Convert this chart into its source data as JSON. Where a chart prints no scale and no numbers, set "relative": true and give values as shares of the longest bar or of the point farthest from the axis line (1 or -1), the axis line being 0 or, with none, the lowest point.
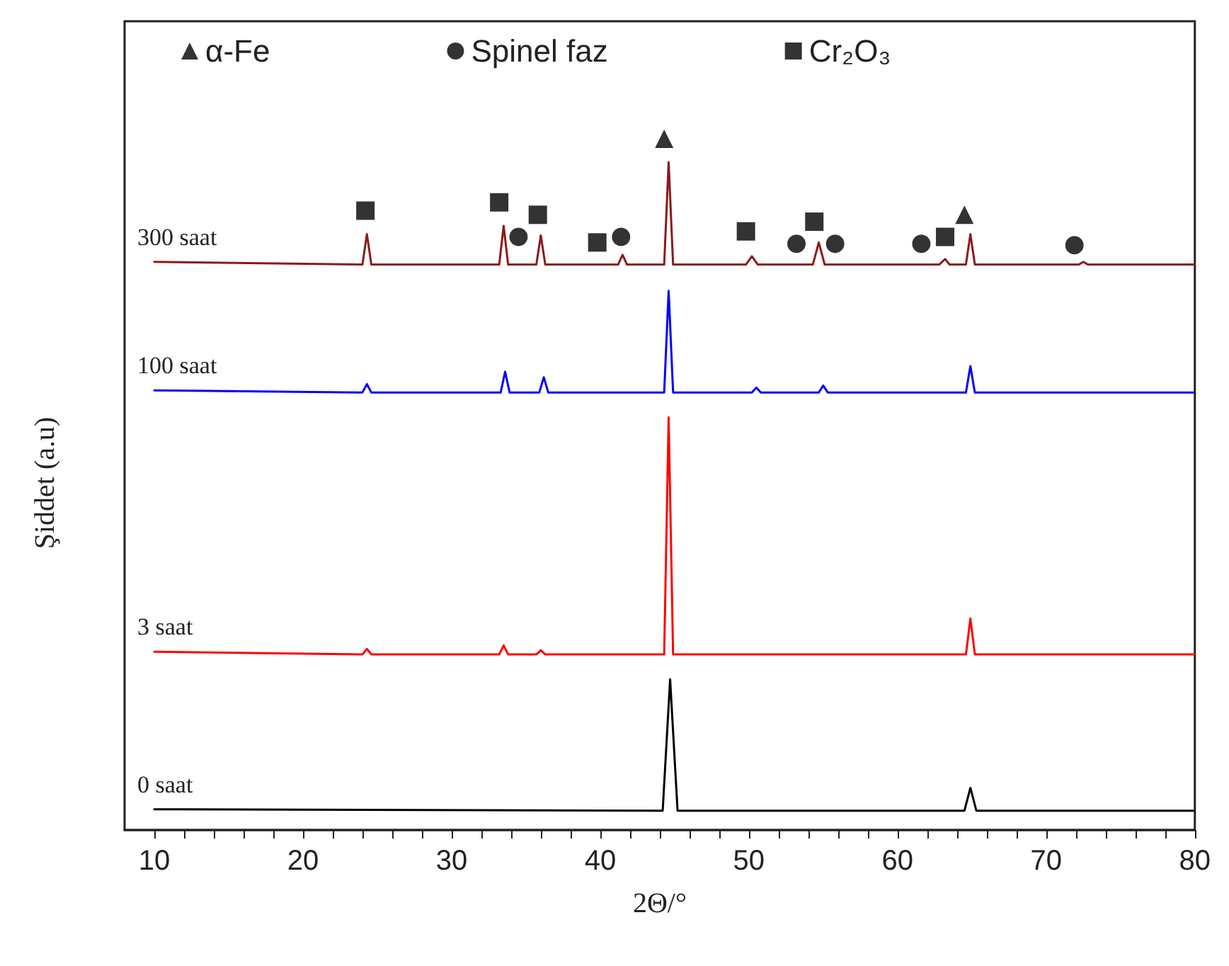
{
  "chart_data": {
    "type": "line",
    "relative": true,
    "xlabel": "2Θ/°",
    "ylabel": "Şiddet (a.u)",
    "xlim": [
      8,
      80
    ],
    "xticks": [
      10,
      {
        "value": 12,
        "label": null
      },
      {
        "value": 14,
        "label": null
      },
      {
        "value": 16,
        "label": null
      },
      {
        "value": 18,
        "label": null
      },
      20,
      {
        "value": 22,
        "label": null
      },
      {
        "value": 24,
        "label": null
      },
      {
        "value": 26,
        "label": null
      },
      {
        "value": 28,
        "label": null
      },
      30,
      {
        "value": 32,
        "label": null
      },
      {
        "value": 34,
        "label": null
      },
      {
        "value": 36,
        "label": null
      },
      {
        "value": 38,
        "label": null
      },
      40,
      {
        "value": 42,
        "label": null
      },
      {
        "value": 44,
        "label": null
      },
      {
        "value": 46,
        "label": null
      },
      {
        "value": 48,
        "label": null
      },
      50,
      {
        "value": 52,
        "label": null
      },
      {
        "value": 54,
        "label": null
      },
      {
        "value": 56,
        "label": null
      },
      {
        "value": 58,
        "label": null
      },
      60,
      {
        "value": 62,
        "label": null
      },
      {
        "value": 64,
        "label": null
      },
      {
        "value": 66,
        "label": null
      },
      {
        "value": 68,
        "label": null
      },
      70,
      {
        "value": 72,
        "label": null
      },
      {
        "value": 74,
        "label": null
      },
      {
        "value": 76,
        "label": null
      },
      {
        "value": 78,
        "label": null
      },
      80
    ],
    "grid": false,
    "legend": "top",
    "line_style": "solid",
    "series": [
      {
        "name": "300 saat",
        "marker": "none",
        "color": "#8b1a1a",
        "x": [
          10,
          24.0,
          24.3,
          24.6,
          33.2,
          33.5,
          33.8,
          35.7,
          36.0,
          36.3,
          41.2,
          41.5,
          41.8,
          44.3,
          44.6,
          44.9,
          49.8,
          50.2,
          50.6,
          54.3,
          54.7,
          55.1,
          62.8,
          63.2,
          63.5,
          64.6,
          64.9,
          65.2,
          72.2,
          72.5,
          72.8,
          80
        ],
        "values": [
          0.822,
          0.818,
          0.862,
          0.818,
          0.818,
          0.874,
          0.818,
          0.818,
          0.86,
          0.818,
          0.818,
          0.832,
          0.818,
          0.818,
          0.966,
          0.818,
          0.818,
          0.83,
          0.818,
          0.818,
          0.85,
          0.818,
          0.818,
          0.826,
          0.818,
          0.818,
          0.862,
          0.818,
          0.818,
          0.822,
          0.818,
          0.818
        ]
      },
      {
        "name": "100 saat",
        "marker": "none",
        "color": "#0000ff",
        "x": [
          10,
          24.0,
          24.3,
          24.6,
          33.3,
          33.6,
          33.9,
          35.9,
          36.2,
          36.5,
          44.3,
          44.6,
          44.9,
          50.2,
          50.5,
          50.8,
          54.7,
          55.0,
          55.3,
          64.6,
          64.9,
          65.2,
          80
        ],
        "values": [
          0.636,
          0.633,
          0.645,
          0.633,
          0.633,
          0.663,
          0.633,
          0.633,
          0.655,
          0.633,
          0.633,
          0.78,
          0.633,
          0.633,
          0.64,
          0.633,
          0.633,
          0.643,
          0.633,
          0.633,
          0.671,
          0.633,
          0.633
        ]
      },
      {
        "name": "3 saat",
        "marker": "none",
        "color": "#ff0000",
        "x": [
          10,
          24.0,
          24.3,
          24.6,
          33.2,
          33.5,
          33.8,
          35.7,
          36.0,
          36.3,
          44.3,
          44.6,
          44.9,
          64.6,
          64.9,
          65.2,
          80
        ],
        "values": [
          0.258,
          0.254,
          0.262,
          0.254,
          0.254,
          0.267,
          0.254,
          0.254,
          0.26,
          0.254,
          0.254,
          0.597,
          0.254,
          0.254,
          0.306,
          0.254,
          0.254
        ]
      },
      {
        "name": "0 saat",
        "marker": "none",
        "color": "#000000",
        "x": [
          10,
          44.2,
          44.7,
          45.2,
          64.5,
          64.9,
          65.3,
          80
        ],
        "values": [
          0.03,
          0.028,
          0.218,
          0.028,
          0.028,
          0.061,
          0.028,
          0.028
        ]
      },
      {
        "name": "α-Fe",
        "type": "scatter",
        "marker": "triangle",
        "color": "#000000",
        "x": [
          44.3,
          64.5
        ],
        "values": [
          1.0,
          0.89
        ]
      },
      {
        "name": "Spinel faz",
        "type": "scatter",
        "marker": "circle",
        "color": "#000000",
        "x": [
          34.5,
          41.4,
          53.2,
          55.8,
          61.6,
          71.9
        ],
        "values": [
          0.858,
          0.858,
          0.848,
          0.848,
          0.848,
          0.846
        ]
      },
      {
        "name": "Cr₂O₃",
        "type": "scatter",
        "marker": "square",
        "color": "#000000",
        "x": [
          24.2,
          33.2,
          35.8,
          39.8,
          49.8,
          54.4,
          63.2
        ],
        "values": [
          0.896,
          0.908,
          0.89,
          0.85,
          0.866,
          0.88,
          0.858
        ]
      }
    ]
  }
}
